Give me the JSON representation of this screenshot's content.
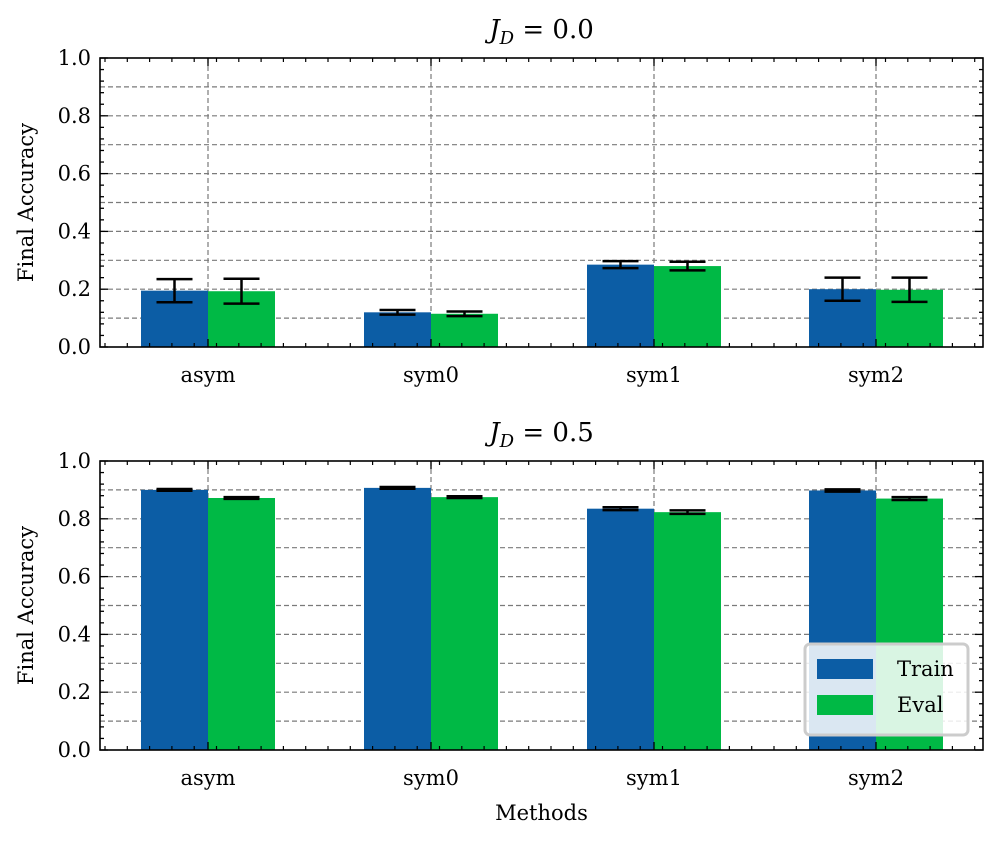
{
  "chart_data": [
    {
      "type": "bar",
      "title_prefix": "J",
      "title_sub": "D",
      "title_value": " = 0.0",
      "categories": [
        "asym",
        "sym0",
        "sym1",
        "sym2"
      ],
      "series": [
        {
          "name": "Train",
          "color": "#0c5da5",
          "values": [
            0.195,
            0.12,
            0.285,
            0.2
          ],
          "errors": [
            0.04,
            0.008,
            0.012,
            0.04
          ]
        },
        {
          "name": "Eval",
          "color": "#00b945",
          "values": [
            0.193,
            0.115,
            0.28,
            0.198
          ],
          "errors": [
            0.043,
            0.008,
            0.015,
            0.042
          ]
        }
      ],
      "xlabel": "",
      "ylabel": "Final Accuracy",
      "ylim": [
        0,
        1
      ],
      "yticks": [
        "0.0",
        "0.2",
        "0.4",
        "0.6",
        "0.8",
        "1.0"
      ],
      "grid": true,
      "legend": false
    },
    {
      "type": "bar",
      "title_prefix": "J",
      "title_sub": "D",
      "title_value": " = 0.5",
      "categories": [
        "asym",
        "sym0",
        "sym1",
        "sym2"
      ],
      "series": [
        {
          "name": "Train",
          "color": "#0c5da5",
          "values": [
            0.9,
            0.907,
            0.835,
            0.898
          ],
          "errors": [
            0.003,
            0.003,
            0.005,
            0.004
          ]
        },
        {
          "name": "Eval",
          "color": "#00b945",
          "values": [
            0.872,
            0.875,
            0.823,
            0.87
          ],
          "errors": [
            0.003,
            0.003,
            0.006,
            0.005
          ]
        }
      ],
      "xlabel": "Methods",
      "ylabel": "Final Accuracy",
      "ylim": [
        0,
        1
      ],
      "yticks": [
        "0.0",
        "0.2",
        "0.4",
        "0.6",
        "0.8",
        "1.0"
      ],
      "grid": true,
      "legend": true,
      "legend_position": "bottom-right"
    }
  ]
}
